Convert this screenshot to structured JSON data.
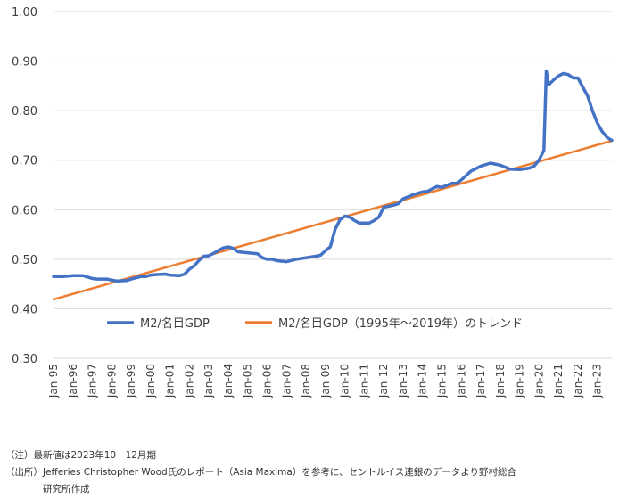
{
  "chart_data": {
    "type": "line",
    "title": "",
    "xlabel": "",
    "ylabel": "",
    "ylim": [
      0.3,
      1.0
    ],
    "yticks": [
      "0.30",
      "0.40",
      "0.50",
      "0.60",
      "0.70",
      "0.80",
      "0.90",
      "1.00"
    ],
    "ytick_values": [
      0.3,
      0.4,
      0.5,
      0.6,
      0.7,
      0.8,
      0.9,
      1.0
    ],
    "xrange": [
      1995.0,
      2023.75
    ],
    "xticks": [
      "Jan-95",
      "Jan-96",
      "Jan-97",
      "Jan-98",
      "Jan-99",
      "Jan-00",
      "Jan-01",
      "Jan-02",
      "Jan-03",
      "Jan-04",
      "Jan-05",
      "Jan-06",
      "Jan-07",
      "Jan-08",
      "Jan-09",
      "Jan-10",
      "Jan-11",
      "Jan-12",
      "Jan-13",
      "Jan-14",
      "Jan-15",
      "Jan-16",
      "Jan-17",
      "Jan-18",
      "Jan-19",
      "Jan-20",
      "Jan-21",
      "Jan-22",
      "Jan-23"
    ],
    "legend_position": "lower-center",
    "series": [
      {
        "name": "M2/名目GDP",
        "color": "#4472c4",
        "x": [
          1995.0,
          1995.5,
          1996.0,
          1996.5,
          1997.0,
          1997.25,
          1997.75,
          1998.25,
          1998.75,
          1999.0,
          1999.5,
          1999.75,
          2000.0,
          2000.25,
          2000.75,
          2001.0,
          2001.5,
          2001.75,
          2002.0,
          2002.25,
          2002.5,
          2002.75,
          2003.0,
          2003.25,
          2003.5,
          2003.75,
          2004.0,
          2004.25,
          2004.5,
          2004.75,
          2005.0,
          2005.5,
          2005.75,
          2006.0,
          2006.25,
          2006.5,
          2007.0,
          2007.5,
          2008.0,
          2008.5,
          2008.75,
          2009.0,
          2009.25,
          2009.5,
          2009.75,
          2010.0,
          2010.25,
          2010.5,
          2010.75,
          2011.0,
          2011.25,
          2011.5,
          2011.75,
          2012.0,
          2012.5,
          2012.75,
          2013.0,
          2013.5,
          2013.75,
          2014.0,
          2014.25,
          2014.75,
          2015.0,
          2015.5,
          2015.75,
          2016.0,
          2016.5,
          2016.75,
          2017.0,
          2017.5,
          2018.0,
          2018.5,
          2019.0,
          2019.5,
          2019.75,
          2020.0,
          2020.25,
          2020.375,
          2020.5,
          2020.75,
          2021.0,
          2021.25,
          2021.5,
          2021.75,
          2022.0,
          2022.25,
          2022.5,
          2022.75,
          2023.0,
          2023.25,
          2023.5,
          2023.75
        ],
        "values": [
          0.465,
          0.465,
          0.467,
          0.467,
          0.461,
          0.46,
          0.46,
          0.456,
          0.457,
          0.46,
          0.465,
          0.465,
          0.468,
          0.469,
          0.47,
          0.468,
          0.467,
          0.47,
          0.48,
          0.487,
          0.498,
          0.506,
          0.507,
          0.512,
          0.518,
          0.523,
          0.525,
          0.522,
          0.515,
          0.514,
          0.513,
          0.511,
          0.503,
          0.5,
          0.5,
          0.497,
          0.495,
          0.5,
          0.503,
          0.506,
          0.508,
          0.517,
          0.525,
          0.56,
          0.58,
          0.587,
          0.585,
          0.578,
          0.573,
          0.573,
          0.573,
          0.578,
          0.585,
          0.605,
          0.609,
          0.612,
          0.622,
          0.63,
          0.633,
          0.636,
          0.637,
          0.647,
          0.645,
          0.653,
          0.653,
          0.66,
          0.678,
          0.683,
          0.688,
          0.694,
          0.69,
          0.682,
          0.681,
          0.684,
          0.688,
          0.7,
          0.72,
          0.88,
          0.852,
          0.862,
          0.87,
          0.875,
          0.873,
          0.866,
          0.866,
          0.848,
          0.83,
          0.8,
          0.775,
          0.758,
          0.746,
          0.74
        ]
      },
      {
        "name": "M2/名目GDP（1995年～2019年）のトレンド",
        "color": "#ed7d31",
        "x": [
          1995.0,
          2023.75
        ],
        "values": [
          0.419,
          0.739
        ]
      }
    ]
  },
  "notes": {
    "line1": "（注）最新値は2023年10－12月期",
    "line2": "（出所）Jefferies Christopher Wood氏のレポート（Asia Maxima）を参考に、セントルイス連銀のデータより野村総合",
    "line3": "研究所作成"
  }
}
